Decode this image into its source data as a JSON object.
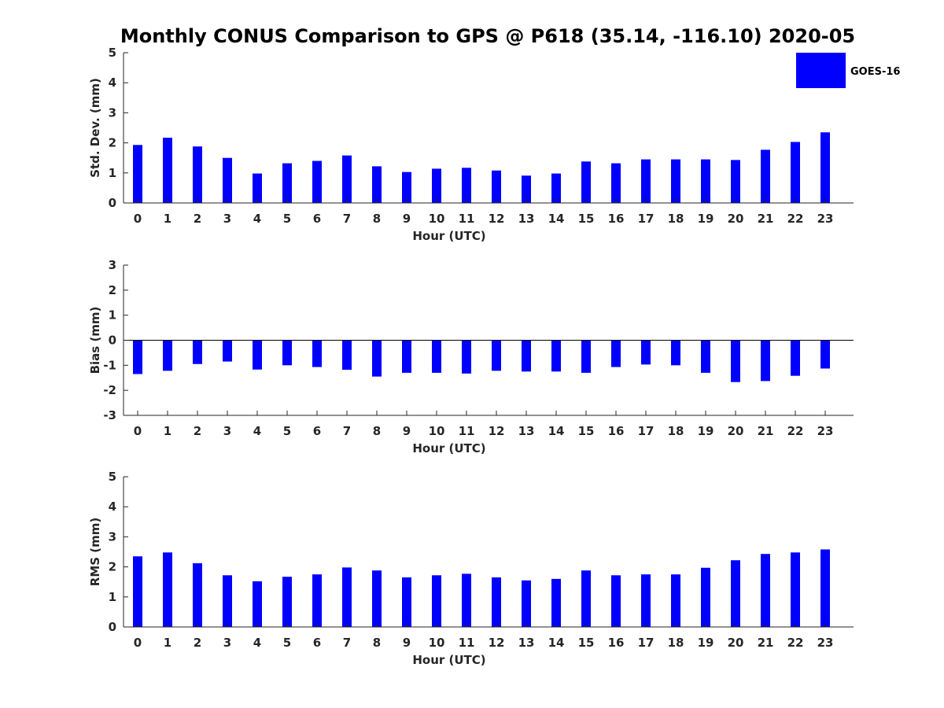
{
  "title": "Monthly CONUS Comparison to GPS @ P618 (35.14, -116.10) 2020-05",
  "colors": {
    "bar": "#0000ff",
    "axis": "#262626"
  },
  "legend": {
    "label": "GOES-16",
    "placement": "top-right"
  },
  "chart_data": [
    {
      "type": "bar",
      "categories": [
        "0",
        "1",
        "2",
        "3",
        "4",
        "5",
        "6",
        "7",
        "8",
        "9",
        "10",
        "11",
        "12",
        "13",
        "14",
        "15",
        "16",
        "17",
        "18",
        "19",
        "20",
        "21",
        "22",
        "23"
      ],
      "series": [
        {
          "name": "GOES-16",
          "values": [
            1.93,
            2.17,
            1.88,
            1.5,
            0.98,
            1.32,
            1.4,
            1.58,
            1.22,
            1.03,
            1.14,
            1.17,
            1.08,
            0.91,
            0.98,
            1.38,
            1.32,
            1.45,
            1.45,
            1.45,
            1.43,
            1.77,
            2.03,
            2.35
          ]
        }
      ],
      "xlabel": "Hour (UTC)",
      "ylabel": "Std. Dev. (mm)",
      "ylim": [
        0,
        5
      ],
      "yticks": [
        "0",
        "1",
        "2",
        "3",
        "4",
        "5"
      ],
      "grid": false
    },
    {
      "type": "bar",
      "categories": [
        "0",
        "1",
        "2",
        "3",
        "4",
        "5",
        "6",
        "7",
        "8",
        "9",
        "10",
        "11",
        "12",
        "13",
        "14",
        "15",
        "16",
        "17",
        "18",
        "19",
        "20",
        "21",
        "22",
        "23"
      ],
      "series": [
        {
          "name": "GOES-16",
          "values": [
            -1.35,
            -1.22,
            -0.95,
            -0.85,
            -1.17,
            -1.0,
            -1.07,
            -1.18,
            -1.45,
            -1.3,
            -1.3,
            -1.33,
            -1.22,
            -1.25,
            -1.25,
            -1.3,
            -1.07,
            -0.97,
            -1.0,
            -1.3,
            -1.67,
            -1.63,
            -1.42,
            -1.13
          ]
        }
      ],
      "xlabel": "Hour (UTC)",
      "ylabel": "Bias (mm)",
      "ylim": [
        -3,
        3
      ],
      "yticks": [
        "-3",
        "-2",
        "-1",
        "0",
        "1",
        "2",
        "3"
      ],
      "grid": false
    },
    {
      "type": "bar",
      "categories": [
        "0",
        "1",
        "2",
        "3",
        "4",
        "5",
        "6",
        "7",
        "8",
        "9",
        "10",
        "11",
        "12",
        "13",
        "14",
        "15",
        "16",
        "17",
        "18",
        "19",
        "20",
        "21",
        "22",
        "23"
      ],
      "series": [
        {
          "name": "GOES-16",
          "values": [
            2.35,
            2.48,
            2.12,
            1.72,
            1.52,
            1.67,
            1.75,
            1.98,
            1.88,
            1.65,
            1.72,
            1.77,
            1.65,
            1.55,
            1.6,
            1.88,
            1.72,
            1.75,
            1.75,
            1.97,
            2.22,
            2.43,
            2.48,
            2.58
          ]
        }
      ],
      "xlabel": "Hour (UTC)",
      "ylabel": "RMS (mm)",
      "ylim": [
        0,
        5
      ],
      "yticks": [
        "0",
        "1",
        "2",
        "3",
        "4",
        "5"
      ],
      "grid": false
    }
  ]
}
